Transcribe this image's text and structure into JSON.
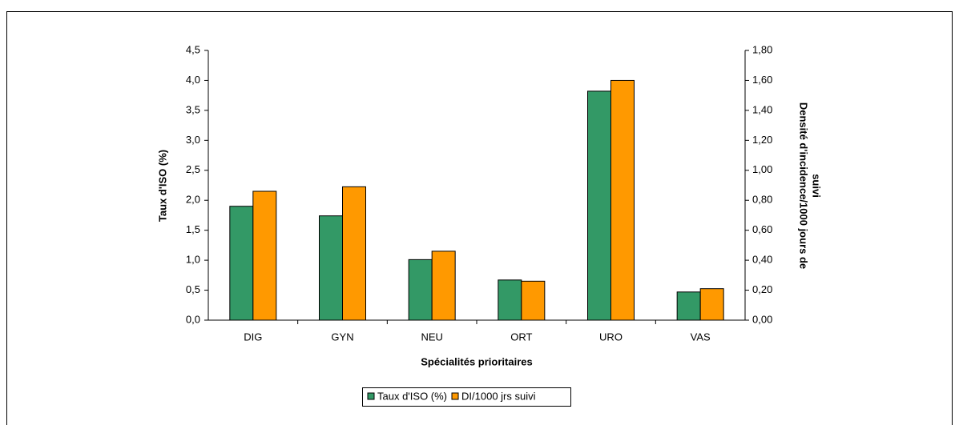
{
  "chart_data": {
    "type": "bar",
    "xlabel": "Spécialités prioritaires",
    "ylabel": "Taux d'ISO (%)",
    "y2label": [
      "Densité d'incidence/1000 jours de",
      "suivi"
    ],
    "categories": [
      "DIG",
      "GYN",
      "NEU",
      "ORT",
      "URO",
      "VAS"
    ],
    "series": [
      {
        "name": "Taux d'ISO (%)",
        "color": "#339966",
        "values": [
          1.9,
          1.74,
          1.01,
          0.67,
          3.82,
          0.47
        ]
      },
      {
        "name": "DI/1000 jrs suivi",
        "color": "#ff9900",
        "axis": "y2",
        "values": [
          0.86,
          0.89,
          0.46,
          0.26,
          1.6,
          0.21
        ]
      }
    ],
    "ylim": [
      0,
      4.5
    ],
    "yticks": [
      {
        "value": 0,
        "label": "0,0"
      },
      {
        "value": 0.5,
        "label": "0,5"
      },
      {
        "value": 1,
        "label": "1,0"
      },
      {
        "value": 1.5,
        "label": "1,5"
      },
      {
        "value": 2,
        "label": "2,0"
      },
      {
        "value": 2.5,
        "label": "2,5"
      },
      {
        "value": 3,
        "label": "3,0"
      },
      {
        "value": 3.5,
        "label": "3,5"
      },
      {
        "value": 4,
        "label": "4,0"
      },
      {
        "value": 4.5,
        "label": "4,5"
      }
    ],
    "y2lim": [
      0,
      1.8
    ],
    "y2ticks": [
      {
        "value": 0,
        "label": "0,00"
      },
      {
        "value": 0.2,
        "label": "0,20"
      },
      {
        "value": 0.4,
        "label": "0,40"
      },
      {
        "value": 0.6,
        "label": "0,60"
      },
      {
        "value": 0.8,
        "label": "0,80"
      },
      {
        "value": 1,
        "label": "1,00"
      },
      {
        "value": 1.2,
        "label": "1,20"
      },
      {
        "value": 1.4,
        "label": "1,40"
      },
      {
        "value": 1.6,
        "label": "1,60"
      },
      {
        "value": 1.8,
        "label": "1,80"
      }
    ],
    "legend": "bottom"
  }
}
